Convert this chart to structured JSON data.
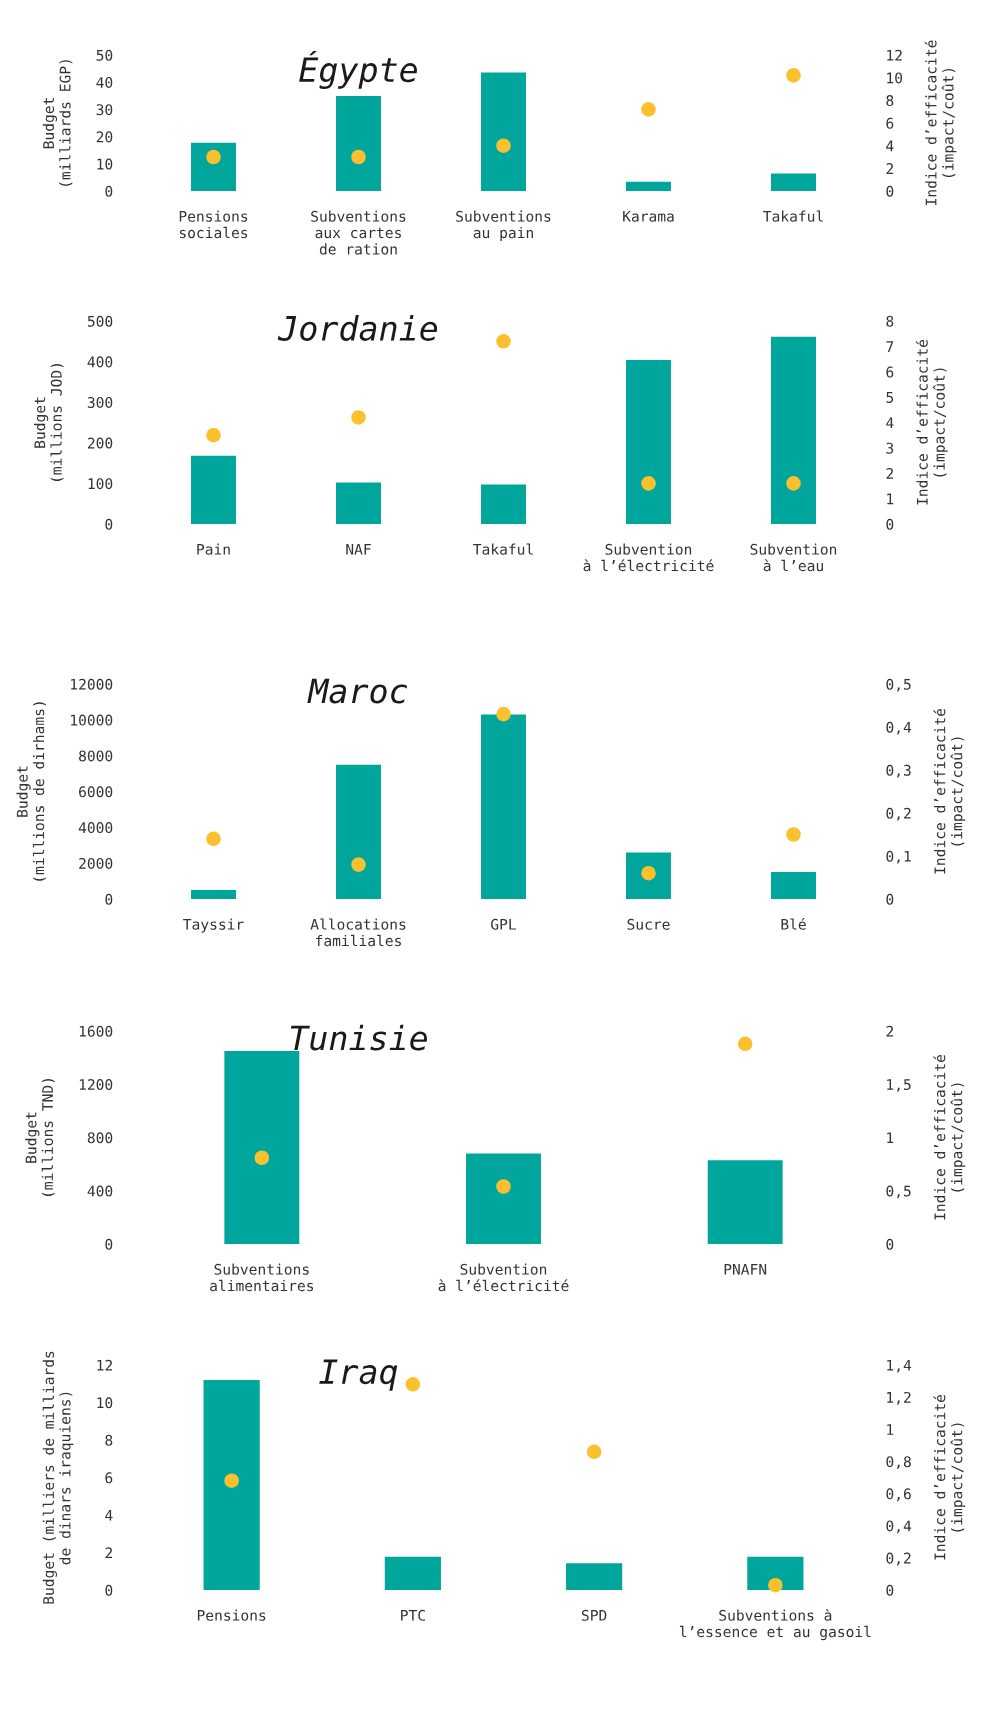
{
  "chart_data": [
    {
      "type": "bar",
      "title": "Égypte",
      "ylabel": "Budget\n(milliards EGP)",
      "y2label": "Indice d’efficacité\n(impact/coût)",
      "categories": [
        "Pensions\nsociales",
        "Subventions\naux cartes\nde ration",
        "Subventions\nau pain",
        "Karama",
        "Takaful"
      ],
      "series": [
        {
          "color": "#00a69c",
          "values": [
            17.7,
            34.9,
            43.6,
            3.4,
            6.4
          ]
        },
        {
          "type": "scatter",
          "axis": "y2",
          "marker": "circle",
          "color": "#fbc02d",
          "values": [
            3,
            3,
            4,
            7.2,
            10.2
          ]
        }
      ],
      "ylim": [
        0,
        50
      ],
      "yticks": [
        0,
        10,
        20,
        30,
        40,
        50
      ],
      "y2lim": [
        0,
        12
      ],
      "y2ticks": [
        0,
        2,
        4,
        6,
        8,
        10,
        12
      ]
    },
    {
      "type": "bar",
      "title": "Jordanie",
      "ylabel": "Budget\n(millions JOD)",
      "y2label": "Indice d’efficacité\n(impact/coût)",
      "categories": [
        "Pain",
        "NAF",
        "Takaful",
        "Subvention\nà l’électricité",
        "Subvention\nà l’eau"
      ],
      "series": [
        {
          "color": "#00a69c",
          "values": [
            168,
            102,
            97,
            404,
            461
          ]
        },
        {
          "type": "scatter",
          "axis": "y2",
          "marker": "circle",
          "color": "#fbc02d",
          "values": [
            3.5,
            4.2,
            7.2,
            1.6,
            1.6
          ]
        }
      ],
      "ylim": [
        0,
        500
      ],
      "yticks": [
        0,
        100,
        200,
        300,
        400,
        500
      ],
      "y2lim": [
        0,
        8
      ],
      "y2ticks": [
        0,
        1,
        2,
        3,
        4,
        5,
        6,
        7,
        8
      ]
    },
    {
      "type": "bar",
      "title": "Maroc",
      "ylabel": "Budget\n(millions de dirhams)",
      "y2label": "Indice d’efficacité\n(impact/coût)",
      "categories": [
        "Tayssir",
        "Allocations\nfamiliales",
        "GPL",
        "Sucre",
        "Blé"
      ],
      "series": [
        {
          "color": "#00a69c",
          "values": [
            500,
            7500,
            10300,
            2600,
            1500
          ]
        },
        {
          "type": "scatter",
          "axis": "y2",
          "marker": "circle",
          "color": "#fbc02d",
          "values": [
            0.14,
            0.08,
            0.43,
            0.06,
            0.15
          ]
        }
      ],
      "ylim": [
        0,
        12000
      ],
      "yticks": [
        0,
        2000,
        4000,
        6000,
        8000,
        10000,
        12000
      ],
      "y2lim": [
        0,
        0.5
      ],
      "y2ticks": [
        0,
        {
          "value": 0.1,
          "label": "0,1"
        },
        {
          "value": 0.2,
          "label": "0,2"
        },
        {
          "value": 0.3,
          "label": "0,3"
        },
        {
          "value": 0.4,
          "label": "0,4"
        },
        {
          "value": 0.5,
          "label": "0,5"
        }
      ]
    },
    {
      "type": "bar",
      "title": "Tunisie",
      "ylabel": "Budget\n(millions TND)",
      "y2label": "Indice d’efficacité\n(impact/coût)",
      "categories": [
        "Subventions\nalimentaires",
        "Subvention\nà l’électricité",
        "PNAFN"
      ],
      "series": [
        {
          "color": "#00a69c",
          "values": [
            1450,
            680,
            630
          ]
        },
        {
          "type": "scatter",
          "axis": "y2",
          "marker": "circle",
          "color": "#fbc02d",
          "values": [
            0.81,
            0.54,
            1.88
          ]
        }
      ],
      "ylim": [
        0,
        1600
      ],
      "yticks": [
        0,
        400,
        800,
        1200,
        1600
      ],
      "y2lim": [
        0,
        2
      ],
      "y2ticks": [
        0,
        {
          "value": 0.5,
          "label": "0,5"
        },
        1,
        {
          "value": 1.5,
          "label": "1,5"
        },
        2
      ]
    },
    {
      "type": "bar",
      "title": "Iraq",
      "ylabel": "Budget (milliers de milliards\nde dinars iraquiens)",
      "y2label": "Indice d’efficacité\n(impact/coût)",
      "categories": [
        "Pensions",
        "PTC",
        "SPD",
        "Subventions à\nl’essence et au gasoil"
      ],
      "series": [
        {
          "color": "#00a69c",
          "values": [
            11.2,
            1.77,
            1.43,
            1.77
          ]
        },
        {
          "type": "scatter",
          "axis": "y2",
          "marker": "circle",
          "color": "#fbc02d",
          "values": [
            0.68,
            1.28,
            0.86,
            0.03
          ]
        }
      ],
      "ylim": [
        0,
        12
      ],
      "yticks": [
        0,
        2,
        4,
        6,
        8,
        10,
        12
      ],
      "y2lim": [
        0,
        1.4
      ],
      "y2ticks": [
        0,
        {
          "value": 0.2,
          "label": "0,2"
        },
        {
          "value": 0.4,
          "label": "0,4"
        },
        {
          "value": 0.6,
          "label": "0,6"
        },
        {
          "value": 0.8,
          "label": "0,8"
        },
        1,
        {
          "value": 1.2,
          "label": "1,2"
        },
        {
          "value": 1.4,
          "label": "1,4"
        }
      ]
    }
  ]
}
